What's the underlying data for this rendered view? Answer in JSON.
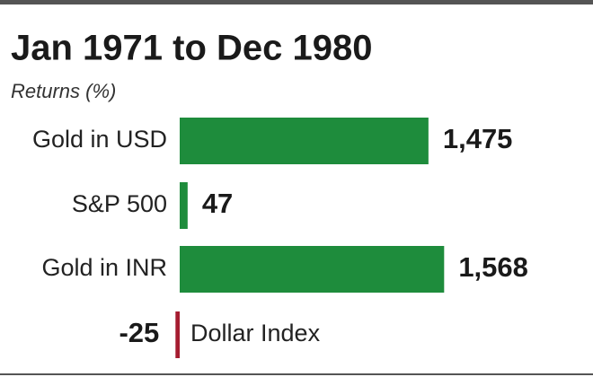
{
  "chart_data": {
    "type": "hbar",
    "title": "Jan 1971 to Dec 1980",
    "subtitle": "Returns (%)",
    "categories": [
      "Gold in USD",
      "S&P 500",
      "Gold in INR",
      "Dollar Index"
    ],
    "values": [
      1475,
      47,
      1568,
      -25
    ],
    "value_labels": [
      "1,475",
      "47",
      "1,568",
      "-25"
    ],
    "color": "#1e8c3c",
    "negative_color": "#a51c30"
  }
}
